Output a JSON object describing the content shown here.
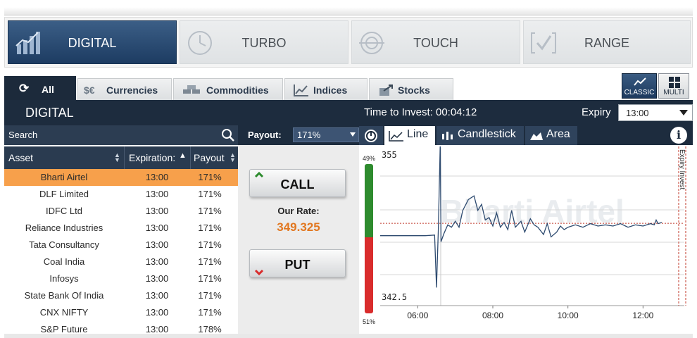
{
  "modes": [
    {
      "label": "DIGITAL",
      "icon": "bar-chart-icon",
      "active": true
    },
    {
      "label": "TURBO",
      "icon": "clock-icon",
      "active": false
    },
    {
      "label": "TOUCH",
      "icon": "target-icon",
      "active": false
    },
    {
      "label": "RANGE",
      "icon": "range-check-icon",
      "active": false
    }
  ],
  "tabs": [
    {
      "label": "All",
      "icon": "refresh-icon",
      "active": true
    },
    {
      "label": "Currencies",
      "icon": "currency-icon"
    },
    {
      "label": "Commodities",
      "icon": "gold-bars-icon"
    },
    {
      "label": "Indices",
      "icon": "line-chart-icon"
    },
    {
      "label": "Stocks",
      "icon": "stocks-icon"
    }
  ],
  "views": {
    "classic": "CLASSIC",
    "multi": "MULTI"
  },
  "header": {
    "title": "DIGITAL",
    "time_to_invest": "Time to Invest: 00:04:12",
    "expiry_label": "Expiry",
    "expiry_value": "13:00"
  },
  "search": {
    "label": "Search"
  },
  "table": {
    "headers": {
      "asset": "Asset",
      "expiration": "Expiration:",
      "payout": "Payout"
    },
    "rows": [
      {
        "asset": "Bharti Airtel",
        "expiration": "13:00",
        "payout": "171%",
        "selected": true
      },
      {
        "asset": "DLF Limited",
        "expiration": "13:00",
        "payout": "171%"
      },
      {
        "asset": "IDFC Ltd",
        "expiration": "13:00",
        "payout": "171%"
      },
      {
        "asset": "Reliance Industries",
        "expiration": "13:00",
        "payout": "171%"
      },
      {
        "asset": "Tata Consultancy",
        "expiration": "13:00",
        "payout": "171%"
      },
      {
        "asset": "Coal India",
        "expiration": "13:00",
        "payout": "171%"
      },
      {
        "asset": "Infosys",
        "expiration": "13:00",
        "payout": "171%"
      },
      {
        "asset": "State Bank Of India",
        "expiration": "13:00",
        "payout": "171%"
      },
      {
        "asset": "CNX NIFTY",
        "expiration": "13:00",
        "payout": "171%"
      },
      {
        "asset": "S&P Future",
        "expiration": "13:00",
        "payout": "178%"
      }
    ]
  },
  "trade": {
    "payout_label": "Payout:",
    "payout_value": "171%",
    "call": "CALL",
    "put": "PUT",
    "rate_label": "Our Rate:",
    "rate_value": "349.325"
  },
  "chart_tabs": {
    "line": "Line",
    "candlestick": "Candlestick",
    "area": "Area",
    "info": "i"
  },
  "gauge": {
    "top": "49%",
    "bottom": "51%",
    "call_fraction": 0.49
  },
  "chart_data": {
    "type": "line",
    "watermark": "Bharti Airtel",
    "y_labels": [
      "355",
      "342.5"
    ],
    "ylim": [
      342.5,
      355
    ],
    "x_ticks": [
      "06:00",
      "08:00",
      "10:00",
      "12:00"
    ],
    "current_rate": 349.325,
    "vertical_label": "Expiry Invest",
    "series": [
      {
        "values": [
          [
            5.0,
            348.3
          ],
          [
            6.2,
            348.3
          ],
          [
            6.45,
            348.35
          ],
          [
            6.5,
            344.0
          ],
          [
            6.55,
            349.0
          ],
          [
            6.6,
            356.0
          ],
          [
            6.62,
            347.8
          ],
          [
            6.7,
            348.5
          ],
          [
            6.8,
            349.2
          ],
          [
            6.9,
            349.0
          ],
          [
            7.0,
            349.5
          ],
          [
            7.1,
            349.0
          ],
          [
            7.2,
            350.4
          ],
          [
            7.35,
            351.3
          ],
          [
            7.5,
            351.6
          ],
          [
            7.6,
            350.4
          ],
          [
            7.7,
            350.9
          ],
          [
            7.8,
            349.6
          ],
          [
            7.9,
            349.8
          ],
          [
            8.0,
            349.1
          ],
          [
            8.1,
            350.2
          ],
          [
            8.2,
            349.0
          ],
          [
            8.3,
            349.4
          ],
          [
            8.4,
            348.8
          ],
          [
            8.5,
            350.4
          ],
          [
            8.6,
            349.0
          ],
          [
            8.75,
            349.5
          ],
          [
            8.85,
            348.6
          ],
          [
            9.0,
            349.7
          ],
          [
            9.1,
            349.2
          ],
          [
            9.2,
            349.0
          ],
          [
            9.35,
            348.4
          ],
          [
            9.45,
            349.3
          ],
          [
            9.55,
            348.2
          ],
          [
            9.7,
            348.6
          ],
          [
            9.8,
            349.1
          ],
          [
            9.9,
            348.8
          ],
          [
            10.0,
            349.0
          ],
          [
            10.2,
            349.2
          ],
          [
            10.4,
            349.0
          ],
          [
            10.6,
            349.3
          ],
          [
            10.8,
            349.1
          ],
          [
            11.0,
            349.2
          ],
          [
            11.2,
            349.1
          ],
          [
            11.4,
            349.3
          ],
          [
            11.6,
            349.0
          ],
          [
            11.8,
            349.2
          ],
          [
            12.0,
            349.1
          ],
          [
            12.2,
            349.3
          ],
          [
            12.3,
            349.2
          ],
          [
            12.35,
            349.6
          ],
          [
            12.4,
            349.3
          ],
          [
            12.5,
            349.4
          ]
        ]
      }
    ]
  }
}
